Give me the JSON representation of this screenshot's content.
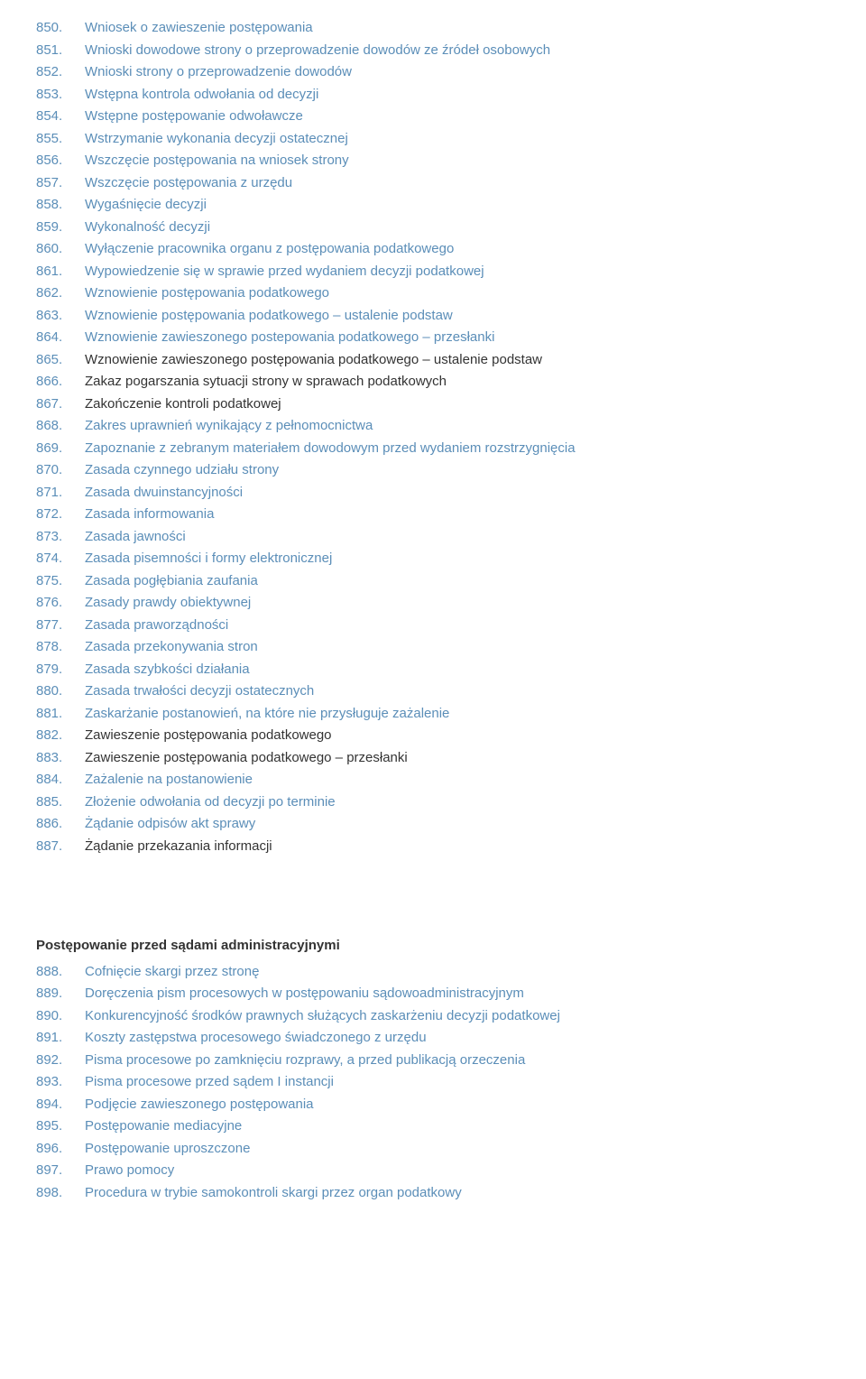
{
  "typography": {
    "font_family": "Verdana, Geneva, sans-serif",
    "font_size": 15,
    "line_height": 1.5,
    "heading_font_weight": "bold"
  },
  "colors": {
    "link_color": "#5b8eb8",
    "text_color": "#333333",
    "number_color": "#5b8eb8",
    "background_color": "#ffffff"
  },
  "sections": [
    {
      "heading": null,
      "items": [
        {
          "number": "850.",
          "text": "Wniosek o zawieszenie postępowania",
          "is_link": true
        },
        {
          "number": "851.",
          "text": "Wnioski dowodowe strony o przeprowadzenie dowodów ze źródeł osobowych",
          "is_link": true
        },
        {
          "number": "852.",
          "text": "Wnioski strony o przeprowadzenie dowodów",
          "is_link": true
        },
        {
          "number": "853.",
          "text": "Wstępna kontrola odwołania od decyzji",
          "is_link": true
        },
        {
          "number": "854.",
          "text": "Wstępne postępowanie odwoławcze",
          "is_link": true
        },
        {
          "number": "855.",
          "text": "Wstrzymanie wykonania decyzji ostatecznej",
          "is_link": true
        },
        {
          "number": "856.",
          "text": "Wszczęcie postępowania na wniosek strony",
          "is_link": true
        },
        {
          "number": "857.",
          "text": "Wszczęcie postępowania z urzędu",
          "is_link": true
        },
        {
          "number": "858.",
          "text": "Wygaśnięcie decyzji",
          "is_link": true
        },
        {
          "number": "859.",
          "text": "Wykonalność decyzji",
          "is_link": true
        },
        {
          "number": "860.",
          "text": "Wyłączenie pracownika organu z postępowania podatkowego",
          "is_link": true
        },
        {
          "number": "861.",
          "text": "Wypowiedzenie się w sprawie przed wydaniem decyzji podatkowej",
          "is_link": true
        },
        {
          "number": "862.",
          "text": "Wznowienie postępowania podatkowego",
          "is_link": true
        },
        {
          "number": "863.",
          "text": "Wznowienie postępowania podatkowego – ustalenie podstaw",
          "is_link": true
        },
        {
          "number": "864.",
          "text": "Wznowienie zawieszonego postepowania podatkowego – przesłanki",
          "is_link": true
        },
        {
          "number": "865.",
          "text": "Wznowienie zawieszonego postępowania podatkowego – ustalenie podstaw",
          "is_link": false
        },
        {
          "number": "866.",
          "text": "Zakaz pogarszania sytuacji strony w sprawach podatkowych",
          "is_link": false
        },
        {
          "number": "867.",
          "text": "Zakończenie kontroli podatkowej",
          "is_link": false
        },
        {
          "number": "868.",
          "text": "Zakres uprawnień wynikający z pełnomocnictwa",
          "is_link": true
        },
        {
          "number": "869.",
          "text": "Zapoznanie z zebranym materiałem dowodowym przed wydaniem rozstrzygnięcia",
          "is_link": true
        },
        {
          "number": "870.",
          "text": "Zasada czynnego udziału strony",
          "is_link": true
        },
        {
          "number": "871.",
          "text": "Zasada dwuinstancyjności",
          "is_link": true
        },
        {
          "number": "872.",
          "text": "Zasada informowania",
          "is_link": true
        },
        {
          "number": "873.",
          "text": "Zasada jawności",
          "is_link": true
        },
        {
          "number": "874.",
          "text": "Zasada pisemności i formy elektronicznej",
          "is_link": true
        },
        {
          "number": "875.",
          "text": "Zasada pogłębiania zaufania",
          "is_link": true
        },
        {
          "number": "876.",
          "text": "Zasady prawdy obiektywnej",
          "is_link": true
        },
        {
          "number": "877.",
          "text": "Zasada praworządności",
          "is_link": true
        },
        {
          "number": "878.",
          "text": "Zasada przekonywania stron",
          "is_link": true
        },
        {
          "number": "879.",
          "text": "Zasada szybkości działania",
          "is_link": true
        },
        {
          "number": "880.",
          "text": "Zasada trwałości decyzji ostatecznych",
          "is_link": true
        },
        {
          "number": "881.",
          "text": "Zaskarżanie postanowień, na które nie przysługuje zażalenie",
          "is_link": true
        },
        {
          "number": "882.",
          "text": "Zawieszenie postępowania podatkowego",
          "is_link": false
        },
        {
          "number": "883.",
          "text": "Zawieszenie postępowania podatkowego – przesłanki",
          "is_link": false
        },
        {
          "number": "884.",
          "text": "Zażalenie na postanowienie",
          "is_link": true
        },
        {
          "number": "885.",
          "text": "Złożenie odwołania od decyzji po terminie",
          "is_link": true
        },
        {
          "number": "886.",
          "text": "Żądanie odpisów akt sprawy",
          "is_link": true
        },
        {
          "number": "887.",
          "text": "Żądanie przekazania informacji",
          "is_link": false
        }
      ]
    },
    {
      "heading": "Postępowanie przed sądami administracyjnymi",
      "items": [
        {
          "number": "888.",
          "text": "Cofnięcie skargi przez stronę",
          "is_link": true
        },
        {
          "number": "889.",
          "text": "Doręczenia pism procesowych w postępowaniu sądowoadministracyjnym",
          "is_link": true
        },
        {
          "number": "890.",
          "text": "Konkurencyjność środków prawnych służących zaskarżeniu decyzji podatkowej",
          "is_link": true
        },
        {
          "number": "891.",
          "text": "Koszty zastępstwa procesowego świadczonego z urzędu",
          "is_link": true
        },
        {
          "number": "892.",
          "text": "Pisma procesowe po zamknięciu rozprawy, a przed publikacją orzeczenia",
          "is_link": true
        },
        {
          "number": "893.",
          "text": "Pisma procesowe przed sądem I instancji",
          "is_link": true
        },
        {
          "number": "894.",
          "text": "Podjęcie zawieszonego postępowania",
          "is_link": true
        },
        {
          "number": "895.",
          "text": "Postępowanie mediacyjne",
          "is_link": true
        },
        {
          "number": "896.",
          "text": "Postępowanie uproszczone",
          "is_link": true
        },
        {
          "number": "897.",
          "text": "Prawo pomocy",
          "is_link": true
        },
        {
          "number": "898.",
          "text": "Procedura w trybie samokontroli skargi przez organ podatkowy",
          "is_link": true
        }
      ]
    }
  ]
}
